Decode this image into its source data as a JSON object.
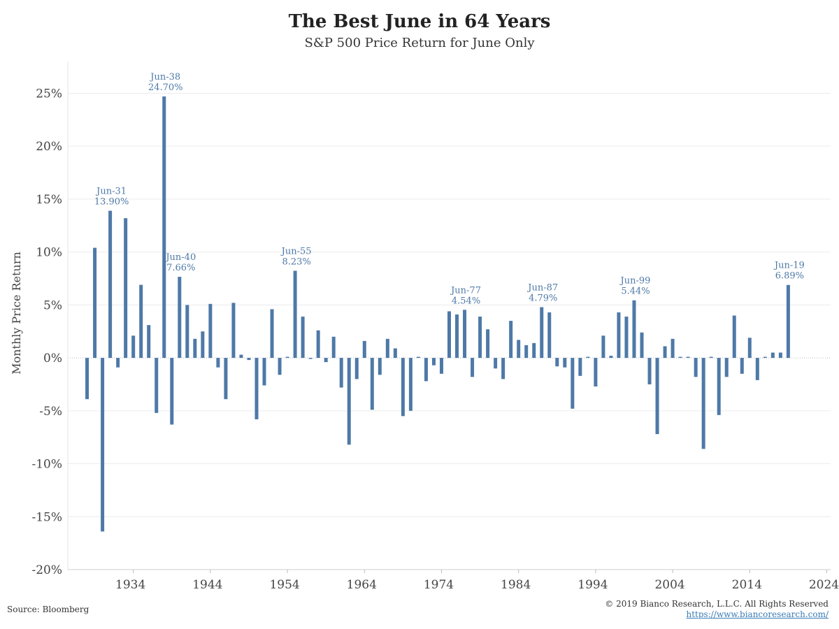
{
  "header": {
    "title": "The Best June in 64 Years",
    "subtitle": "S&P 500 Price Return for June Only"
  },
  "footer": {
    "source": "Source: Bloomberg",
    "copyright": "© 2019 Bianco Research, L.L.C. All Rights Reserved",
    "url": "https://www.biancoresearch.com/"
  },
  "colors": {
    "bar": "#4e79a7",
    "annotation": "#4e79a7",
    "grid": "#ececec",
    "zero_line": "#bbbbbb"
  },
  "chart_data": {
    "type": "bar",
    "title": "The Best June in 64 Years",
    "subtitle": "S&P 500 Price Return for June Only",
    "ylabel": "Monthly Price Return",
    "xlabel": "",
    "ylim": [
      -20,
      28
    ],
    "xlim": [
      1925.5,
      2024.5
    ],
    "yticks": [
      -20,
      -15,
      -10,
      -5,
      0,
      5,
      10,
      15,
      20,
      25
    ],
    "ytick_labels": [
      "-20%",
      "-15%",
      "-10%",
      "-5%",
      "0%",
      "5%",
      "10%",
      "15%",
      "20%",
      "25%"
    ],
    "xticks": [
      1934,
      1944,
      1954,
      1964,
      1974,
      1984,
      1994,
      2004,
      2014,
      2024
    ],
    "xtick_labels": [
      "1934",
      "1944",
      "1954",
      "1964",
      "1974",
      "1984",
      "1994",
      "2004",
      "2014",
      "2024"
    ],
    "grid": true,
    "units": "%",
    "years": [
      1928,
      1929,
      1930,
      1931,
      1932,
      1933,
      1934,
      1935,
      1936,
      1937,
      1938,
      1939,
      1940,
      1941,
      1942,
      1943,
      1944,
      1945,
      1946,
      1947,
      1948,
      1949,
      1950,
      1951,
      1952,
      1953,
      1954,
      1955,
      1956,
      1957,
      1958,
      1959,
      1960,
      1961,
      1962,
      1963,
      1964,
      1965,
      1966,
      1967,
      1968,
      1969,
      1970,
      1971,
      1972,
      1973,
      1974,
      1975,
      1976,
      1977,
      1978,
      1979,
      1980,
      1981,
      1982,
      1983,
      1984,
      1985,
      1986,
      1987,
      1988,
      1989,
      1990,
      1991,
      1992,
      1993,
      1994,
      1995,
      1996,
      1997,
      1998,
      1999,
      2000,
      2001,
      2002,
      2003,
      2004,
      2005,
      2006,
      2007,
      2008,
      2009,
      2010,
      2011,
      2012,
      2013,
      2014,
      2015,
      2016,
      2017,
      2018,
      2019
    ],
    "values": [
      -3.9,
      10.4,
      -16.4,
      13.9,
      -0.9,
      13.2,
      2.1,
      6.9,
      3.1,
      -5.2,
      24.7,
      -6.3,
      7.66,
      5.0,
      1.8,
      2.5,
      5.1,
      -0.9,
      -3.9,
      5.2,
      0.3,
      -0.2,
      -5.8,
      -2.6,
      4.6,
      -1.6,
      0.1,
      8.23,
      3.9,
      -0.1,
      2.6,
      -0.4,
      2.0,
      -2.8,
      -8.2,
      -2.0,
      1.6,
      -4.9,
      -1.6,
      1.8,
      0.9,
      -5.5,
      -5.0,
      0.1,
      -2.2,
      -0.7,
      -1.5,
      4.4,
      4.1,
      4.54,
      -1.8,
      3.9,
      2.7,
      -1.0,
      -2.0,
      3.5,
      1.7,
      1.2,
      1.4,
      4.79,
      4.3,
      -0.8,
      -0.9,
      -4.8,
      -1.7,
      0.1,
      -2.7,
      2.1,
      0.2,
      4.3,
      3.9,
      5.44,
      2.4,
      -2.5,
      -7.2,
      1.1,
      1.8,
      0.1,
      0.1,
      -1.8,
      -8.6,
      0.1,
      -5.4,
      -1.8,
      4.0,
      -1.5,
      1.9,
      -2.1,
      0.1,
      0.5,
      0.5,
      6.89
    ],
    "annotations": [
      {
        "label": "Jun-31",
        "value_label": "13.90%",
        "year": 1931,
        "value": 13.9
      },
      {
        "label": "Jun-38",
        "value_label": "24.70%",
        "year": 1938,
        "value": 24.7
      },
      {
        "label": "Jun-40",
        "value_label": "7.66%",
        "year": 1940,
        "value": 7.66
      },
      {
        "label": "Jun-55",
        "value_label": "8.23%",
        "year": 1955,
        "value": 8.23
      },
      {
        "label": "Jun-77",
        "value_label": "4.54%",
        "year": 1977,
        "value": 4.54
      },
      {
        "label": "Jun-87",
        "value_label": "4.79%",
        "year": 1987,
        "value": 4.79
      },
      {
        "label": "Jun-99",
        "value_label": "5.44%",
        "year": 1999,
        "value": 5.44
      },
      {
        "label": "Jun-19",
        "value_label": "6.89%",
        "year": 2019,
        "value": 6.89
      }
    ]
  }
}
